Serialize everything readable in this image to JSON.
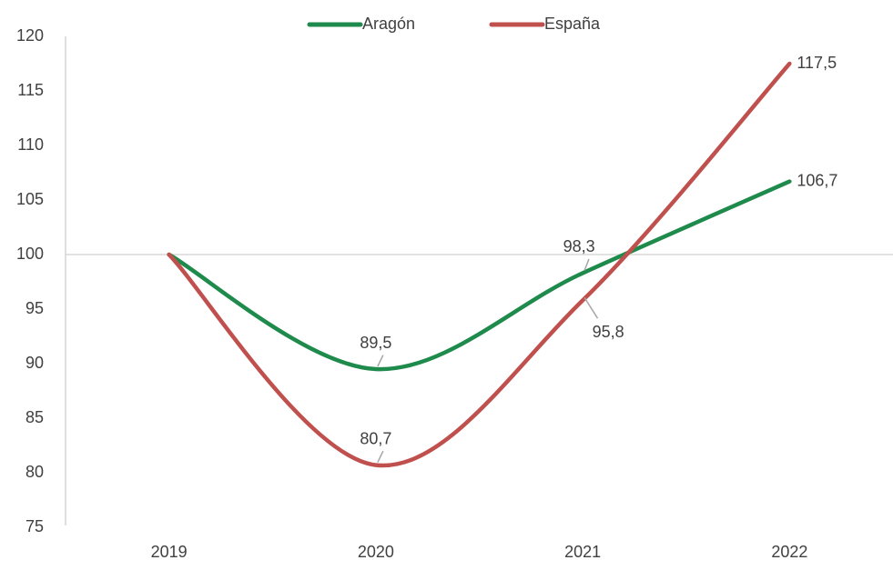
{
  "chart_data": {
    "type": "line",
    "categories": [
      "2019",
      "2020",
      "2021",
      "2022"
    ],
    "series": [
      {
        "name": "Aragón",
        "color": "#1e8a4c",
        "values": [
          100,
          89.5,
          98.3,
          106.7
        ],
        "value_labels": [
          null,
          "89,5",
          "98,3",
          "106,7"
        ]
      },
      {
        "name": "España",
        "color": "#c0504d",
        "values": [
          100,
          80.7,
          95.8,
          117.5
        ],
        "value_labels": [
          null,
          "80,7",
          "95,8",
          "117,5"
        ]
      }
    ],
    "ylim": [
      75,
      120
    ],
    "yticks": [
      75,
      80,
      85,
      90,
      95,
      100,
      105,
      110,
      115,
      120
    ],
    "reference_line": 100,
    "grid": false,
    "legend": "top",
    "smooth": true
  }
}
